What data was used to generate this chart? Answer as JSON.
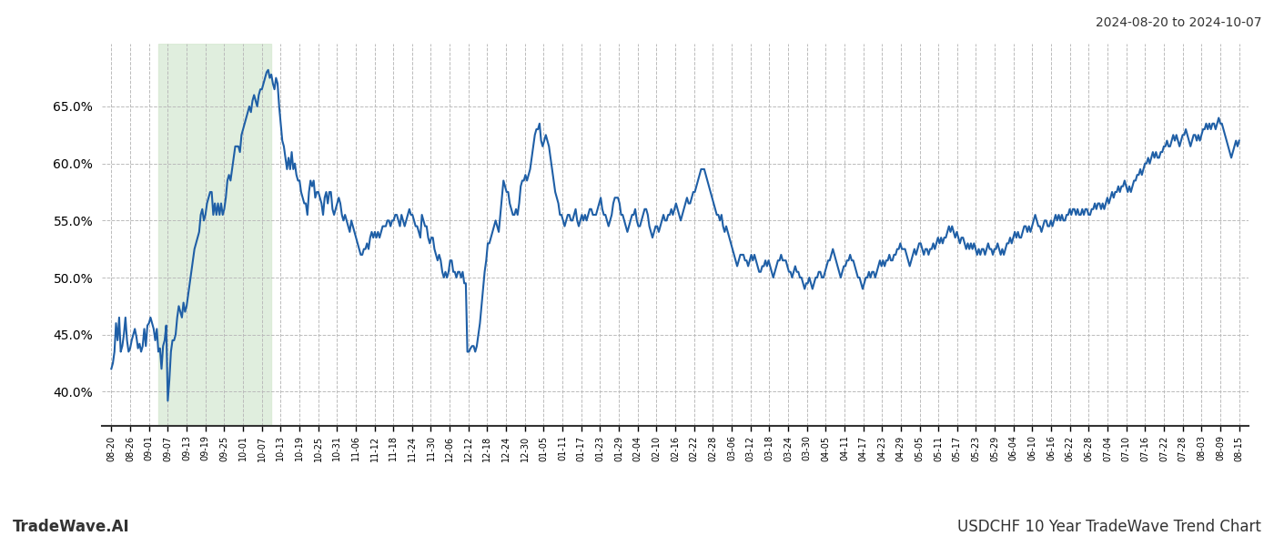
{
  "title_top_right": "2024-08-20 to 2024-10-07",
  "title_bottom_left": "TradeWave.AI",
  "title_bottom_right": "USDCHF 10 Year TradeWave Trend Chart",
  "background_color": "#ffffff",
  "grid_color": "#bbbbbb",
  "line_color": "#1f5fa6",
  "line_width": 1.5,
  "shade_color": "#d4e8d0",
  "shade_alpha": 0.7,
  "shade_xstart_label": "09-07",
  "shade_xend_label": "10-07",
  "ylim": [
    37.0,
    70.5
  ],
  "yticks": [
    40.0,
    45.0,
    50.0,
    55.0,
    60.0,
    65.0
  ],
  "x_labels": [
    "08-20",
    "08-26",
    "09-01",
    "09-07",
    "09-13",
    "09-19",
    "09-25",
    "10-01",
    "10-07",
    "10-13",
    "10-19",
    "10-25",
    "10-31",
    "11-06",
    "11-12",
    "11-18",
    "11-24",
    "11-30",
    "12-06",
    "12-12",
    "12-18",
    "12-24",
    "12-30",
    "01-05",
    "01-11",
    "01-17",
    "01-23",
    "01-29",
    "02-04",
    "02-10",
    "02-16",
    "02-22",
    "02-28",
    "03-06",
    "03-12",
    "03-18",
    "03-24",
    "03-30",
    "04-05",
    "04-11",
    "04-17",
    "04-23",
    "04-29",
    "05-05",
    "05-11",
    "05-17",
    "05-23",
    "05-29",
    "06-04",
    "06-10",
    "06-16",
    "06-22",
    "06-28",
    "07-04",
    "07-10",
    "07-16",
    "07-22",
    "07-28",
    "08-03",
    "08-09",
    "08-15"
  ],
  "y_values": [
    42.0,
    42.5,
    43.5,
    46.0,
    44.5,
    46.5,
    43.5,
    44.0,
    45.0,
    46.5,
    44.5,
    43.5,
    43.8,
    44.5,
    45.0,
    45.5,
    44.8,
    43.8,
    44.2,
    43.5,
    44.0,
    45.5,
    44.0,
    45.8,
    46.0,
    46.5,
    46.0,
    45.5,
    44.5,
    45.5,
    43.5,
    43.8,
    42.0,
    44.0,
    44.5,
    45.8,
    39.2,
    41.0,
    43.5,
    44.5,
    44.5,
    45.0,
    46.5,
    47.5,
    47.0,
    46.5,
    47.8,
    47.0,
    47.5,
    48.5,
    49.5,
    50.5,
    51.5,
    52.5,
    53.0,
    53.5,
    54.0,
    55.5,
    56.0,
    55.0,
    55.5,
    56.5,
    57.0,
    57.5,
    57.5,
    55.5,
    56.5,
    55.5,
    56.5,
    55.5,
    56.5,
    55.5,
    56.0,
    57.0,
    58.5,
    59.0,
    58.5,
    59.5,
    60.5,
    61.5,
    61.5,
    61.5,
    61.0,
    62.5,
    63.0,
    63.5,
    64.0,
    64.5,
    65.0,
    64.5,
    65.5,
    66.0,
    65.5,
    65.0,
    66.0,
    66.5,
    66.5,
    67.0,
    67.5,
    68.0,
    68.2,
    67.5,
    67.8,
    67.0,
    66.5,
    67.5,
    67.0,
    65.0,
    63.5,
    62.0,
    61.5,
    60.5,
    59.5,
    60.5,
    59.5,
    61.0,
    59.5,
    60.0,
    59.0,
    58.5,
    58.5,
    57.5,
    57.0,
    56.5,
    56.5,
    55.5,
    57.5,
    58.5,
    58.0,
    58.5,
    57.0,
    57.5,
    57.5,
    57.0,
    56.5,
    55.5,
    57.0,
    57.5,
    56.5,
    57.5,
    57.5,
    56.0,
    55.5,
    56.0,
    56.5,
    57.0,
    56.5,
    55.5,
    55.0,
    55.5,
    55.0,
    54.5,
    54.0,
    55.0,
    54.5,
    54.0,
    53.5,
    53.0,
    52.5,
    52.0,
    52.0,
    52.5,
    52.5,
    53.0,
    52.5,
    53.5,
    54.0,
    53.5,
    54.0,
    53.5,
    54.0,
    53.5,
    54.0,
    54.5,
    54.5,
    54.5,
    55.0,
    55.0,
    54.5,
    55.0,
    55.0,
    55.5,
    55.5,
    55.0,
    54.5,
    55.5,
    55.0,
    54.5,
    55.0,
    55.5,
    56.0,
    55.5,
    55.5,
    55.0,
    54.5,
    54.5,
    54.0,
    53.5,
    55.5,
    55.0,
    54.5,
    54.5,
    53.5,
    53.0,
    53.5,
    53.5,
    52.5,
    52.0,
    51.5,
    52.0,
    51.5,
    50.5,
    50.0,
    50.5,
    50.0,
    50.5,
    51.5,
    51.5,
    50.5,
    50.5,
    50.0,
    50.5,
    50.5,
    50.0,
    50.5,
    49.5,
    49.5,
    43.5,
    43.5,
    43.8,
    44.0,
    44.0,
    43.5,
    44.0,
    45.0,
    46.0,
    47.5,
    49.0,
    50.5,
    51.5,
    53.0,
    53.0,
    53.5,
    54.0,
    54.5,
    55.0,
    54.5,
    54.0,
    55.5,
    57.0,
    58.5,
    58.0,
    57.5,
    57.5,
    56.5,
    56.0,
    55.5,
    55.5,
    56.0,
    55.5,
    56.5,
    58.0,
    58.5,
    58.5,
    59.0,
    58.5,
    59.0,
    59.5,
    60.5,
    61.5,
    62.5,
    63.0,
    63.0,
    63.5,
    62.0,
    61.5,
    62.0,
    62.5,
    62.0,
    61.5,
    60.5,
    59.5,
    58.5,
    57.5,
    57.0,
    56.5,
    55.5,
    55.5,
    55.0,
    54.5,
    55.0,
    55.5,
    55.5,
    55.0,
    55.0,
    55.5,
    56.0,
    55.0,
    54.5,
    55.0,
    55.5,
    55.0,
    55.5,
    55.0,
    55.5,
    56.0,
    56.0,
    55.5,
    55.5,
    55.5,
    56.0,
    56.5,
    57.0,
    56.0,
    55.5,
    55.5,
    55.0,
    54.5,
    55.0,
    55.5,
    56.5,
    57.0,
    57.0,
    57.0,
    56.5,
    55.5,
    55.5,
    55.0,
    54.5,
    54.0,
    54.5,
    55.0,
    55.5,
    55.5,
    56.0,
    55.0,
    54.5,
    54.5,
    55.0,
    55.5,
    56.0,
    56.0,
    55.5,
    54.5,
    54.0,
    53.5,
    54.0,
    54.5,
    54.5,
    54.0,
    54.5,
    55.0,
    55.5,
    55.0,
    55.0,
    55.5,
    55.5,
    56.0,
    55.5,
    56.0,
    56.5,
    56.0,
    55.5,
    55.0,
    55.5,
    56.0,
    56.5,
    57.0,
    56.5,
    56.5,
    57.0,
    57.5,
    57.5,
    58.0,
    58.5,
    59.0,
    59.5,
    59.5,
    59.5,
    59.0,
    58.5,
    58.0,
    57.5,
    57.0,
    56.5,
    56.0,
    55.5,
    55.5,
    55.0,
    55.5,
    54.5,
    54.0,
    54.5,
    54.0,
    53.5,
    53.0,
    52.5,
    52.0,
    51.5,
    51.0,
    51.5,
    52.0,
    52.0,
    52.0,
    51.5,
    51.5,
    51.0,
    51.5,
    52.0,
    51.5,
    52.0,
    51.5,
    51.0,
    50.5,
    50.5,
    51.0,
    51.0,
    51.5,
    51.0,
    51.5,
    51.0,
    50.5,
    50.0,
    50.5,
    51.0,
    51.5,
    51.5,
    52.0,
    51.5,
    51.5,
    51.5,
    51.0,
    50.5,
    50.5,
    50.0,
    50.5,
    51.0,
    50.5,
    50.5,
    50.0,
    50.0,
    49.5,
    49.0,
    49.5,
    49.5,
    50.0,
    49.5,
    49.0,
    49.5,
    50.0,
    50.0,
    50.5,
    50.5,
    50.0,
    50.0,
    50.5,
    51.0,
    51.5,
    51.5,
    52.0,
    52.5,
    52.0,
    51.5,
    51.0,
    50.5,
    50.0,
    50.5,
    51.0,
    51.0,
    51.5,
    51.5,
    52.0,
    51.5,
    51.5,
    51.0,
    50.5,
    50.0,
    50.0,
    49.5,
    49.0,
    49.5,
    50.0,
    50.0,
    50.5,
    50.0,
    50.5,
    50.5,
    50.0,
    50.5,
    51.0,
    51.5,
    51.0,
    51.5,
    51.0,
    51.5,
    51.5,
    52.0,
    51.5,
    51.5,
    52.0,
    52.0,
    52.5,
    52.5,
    53.0,
    52.5,
    52.5,
    52.5,
    52.0,
    51.5,
    51.0,
    51.5,
    52.0,
    52.5,
    52.0,
    52.5,
    53.0,
    53.0,
    52.5,
    52.0,
    52.5,
    52.5,
    52.0,
    52.5,
    52.5,
    53.0,
    52.5,
    53.0,
    53.5,
    53.0,
    53.5,
    53.0,
    53.5,
    53.5,
    54.0,
    54.5,
    54.0,
    54.5,
    54.0,
    53.5,
    54.0,
    53.5,
    53.0,
    53.5,
    53.5,
    53.0,
    52.5,
    53.0,
    52.5,
    53.0,
    52.5,
    53.0,
    52.5,
    52.0,
    52.5,
    52.0,
    52.5,
    52.5,
    52.0,
    52.5,
    53.0,
    52.5,
    52.5,
    52.0,
    52.5,
    52.5,
    53.0,
    52.5,
    52.0,
    52.5,
    52.0,
    52.5,
    53.0,
    53.0,
    53.5,
    53.0,
    53.5,
    54.0,
    53.5,
    54.0,
    53.5,
    53.5,
    54.0,
    54.5,
    54.5,
    54.0,
    54.5,
    54.0,
    54.5,
    55.0,
    55.5,
    55.0,
    54.5,
    54.5,
    54.0,
    54.5,
    55.0,
    55.0,
    54.5,
    54.5,
    55.0,
    54.5,
    55.0,
    55.5,
    55.0,
    55.5,
    55.0,
    55.5,
    55.0,
    55.0,
    55.5,
    55.5,
    56.0,
    55.5,
    56.0,
    56.0,
    55.5,
    56.0,
    55.5,
    55.5,
    56.0,
    55.5,
    56.0,
    56.0,
    55.5,
    55.5,
    56.0,
    56.0,
    56.5,
    56.0,
    56.5,
    56.5,
    56.0,
    56.5,
    56.0,
    56.5,
    57.0,
    56.5,
    57.0,
    57.5,
    57.0,
    57.5,
    57.5,
    58.0,
    57.5,
    58.0,
    58.0,
    58.5,
    58.0,
    57.5,
    58.0,
    57.5,
    58.0,
    58.5,
    58.5,
    59.0,
    59.0,
    59.5,
    59.0,
    59.5,
    60.0,
    60.0,
    60.5,
    60.0,
    60.5,
    61.0,
    60.5,
    61.0,
    60.5,
    60.5,
    61.0,
    61.0,
    61.5,
    61.5,
    62.0,
    61.5,
    61.5,
    62.0,
    62.5,
    62.0,
    62.5,
    62.0,
    61.5,
    62.0,
    62.5,
    62.5,
    63.0,
    62.5,
    62.0,
    61.5,
    62.0,
    62.5,
    62.5,
    62.0,
    62.5,
    62.0,
    62.5,
    63.0,
    63.0,
    63.5,
    63.0,
    63.5,
    63.0,
    63.5,
    63.5,
    63.0,
    63.5,
    64.0,
    63.5,
    63.5,
    63.0,
    62.5,
    62.0,
    61.5,
    61.0,
    60.5,
    61.0,
    61.5,
    62.0,
    61.5,
    62.0
  ]
}
